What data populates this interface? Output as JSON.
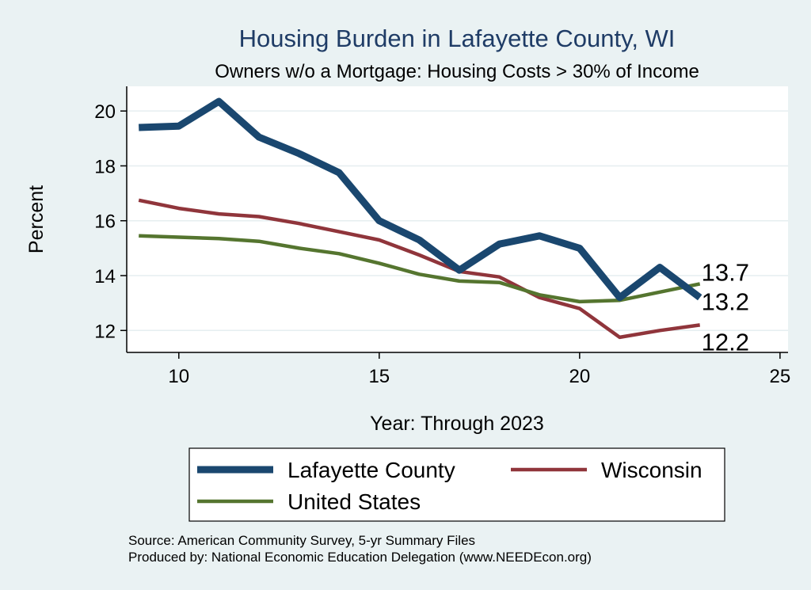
{
  "chart_data": {
    "type": "line",
    "title": "Housing Burden in Lafayette County, WI",
    "subtitle": "Owners w/o a Mortgage: Housing Costs > 30% of Income",
    "xlabel": "Year: Through 2023",
    "ylabel": "Percent",
    "xlim": [
      8.7,
      25.2
    ],
    "ylim": [
      11.2,
      20.9
    ],
    "x_ticks": [
      10,
      15,
      20,
      25
    ],
    "y_ticks": [
      12,
      14,
      16,
      18,
      20
    ],
    "grid": true,
    "legend_position": "bottom",
    "x": [
      9,
      10,
      11,
      12,
      13,
      14,
      15,
      16,
      17,
      18,
      19,
      20,
      21,
      22,
      23
    ],
    "series": [
      {
        "name": "Lafayette County",
        "color": "#1a476f",
        "values": [
          19.4,
          19.45,
          20.35,
          19.05,
          18.45,
          17.75,
          16.0,
          15.3,
          14.2,
          15.15,
          15.45,
          15.0,
          13.2,
          14.3,
          13.2
        ],
        "end_label": "13.2"
      },
      {
        "name": "Wisconsin",
        "color": "#90353b",
        "values": [
          16.75,
          16.45,
          16.25,
          16.15,
          15.9,
          15.6,
          15.3,
          14.75,
          14.15,
          13.95,
          13.2,
          12.8,
          11.75,
          12.0,
          12.2
        ],
        "end_label": "12.2"
      },
      {
        "name": "United States",
        "color": "#55752f",
        "values": [
          15.45,
          15.4,
          15.35,
          15.25,
          15.0,
          14.8,
          14.45,
          14.05,
          13.8,
          13.75,
          13.3,
          13.05,
          13.1,
          13.4,
          13.7
        ],
        "end_label": "13.7"
      }
    ]
  },
  "notes": {
    "source": "Source: American Community Survey, 5-yr Summary Files",
    "produced": "Produced by: National Economic Education Delegation (www.NEEDEcon.org)"
  }
}
